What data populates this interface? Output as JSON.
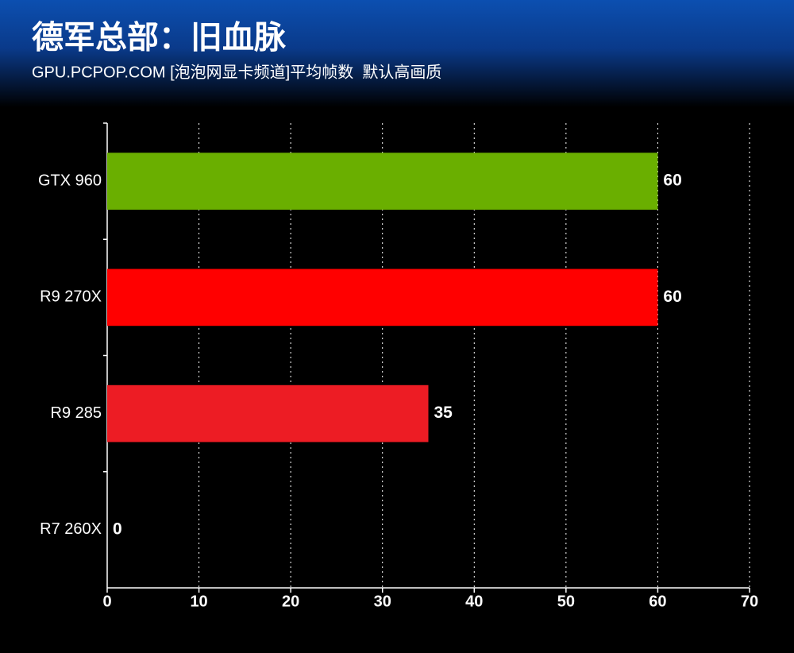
{
  "chart_data": {
    "type": "hbar",
    "title": "德军总部：旧血脉",
    "subtitle": "GPU.PCPOP.COM [泡泡网显卡频道]平均帧数  默认高画质",
    "categories": [
      "GTX 960",
      "R9 270X",
      "R9 285",
      "R7 260X"
    ],
    "values": [
      60,
      60,
      35,
      0
    ],
    "colors": [
      "#6aaf00",
      "#ff0000",
      "#ed1c24",
      "#ed1c24"
    ],
    "xlim": [
      0,
      70
    ],
    "xticks": [
      0,
      10,
      20,
      30,
      40,
      50,
      60,
      70
    ],
    "grid": true
  }
}
